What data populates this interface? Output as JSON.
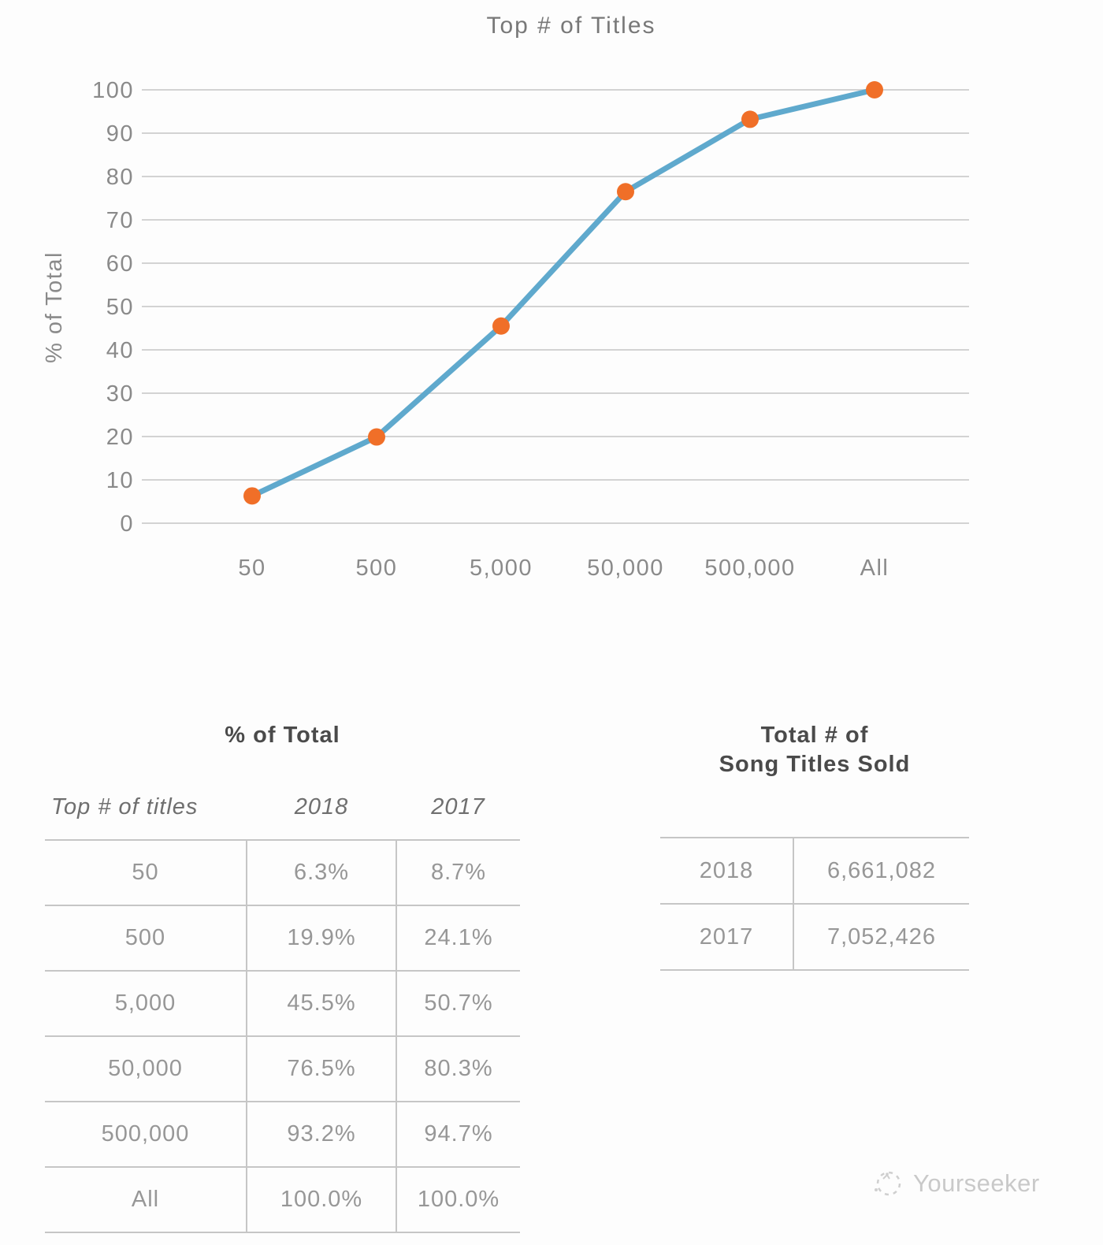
{
  "chart_data": {
    "type": "line",
    "title": "Top # of Titles",
    "xlabel": "",
    "ylabel": "% of Total",
    "categories": [
      "50",
      "500",
      "5,000",
      "50,000",
      "500,000",
      "All"
    ],
    "series": [
      {
        "name": "2018",
        "values": [
          6.3,
          19.9,
          45.5,
          76.5,
          93.2,
          100.0
        ]
      }
    ],
    "ylim": [
      0,
      100
    ],
    "y_ticks": [
      0,
      10,
      20,
      30,
      40,
      50,
      60,
      70,
      80,
      90,
      100
    ],
    "grid": true,
    "legend": false
  },
  "tables": {
    "percent": {
      "title": "% of Total",
      "columns": [
        "Top # of titles",
        "2018",
        "2017"
      ],
      "rows": [
        [
          "50",
          "6.3%",
          "8.7%"
        ],
        [
          "500",
          "19.9%",
          "24.1%"
        ],
        [
          "5,000",
          "45.5%",
          "50.7%"
        ],
        [
          "50,000",
          "76.5%",
          "80.3%"
        ],
        [
          "500,000",
          "93.2%",
          "94.7%"
        ],
        [
          "All",
          "100.0%",
          "100.0%"
        ]
      ]
    },
    "totals": {
      "title_line1": "Total # of",
      "title_line2": "Song Titles Sold",
      "rows": [
        [
          "2018",
          "6,661,082"
        ],
        [
          "2017",
          "7,052,426"
        ]
      ]
    }
  },
  "watermark": {
    "text": "Yourseeker"
  },
  "colors": {
    "line": "#5fa9cd",
    "marker": "#f06f28",
    "grid": "#d3d3d3",
    "axis_text": "#8a8a8a",
    "table_text": "#979797",
    "heading_text": "#4a4a4a",
    "border": "#c6c6c6",
    "watermark": "#c9c9c9"
  }
}
